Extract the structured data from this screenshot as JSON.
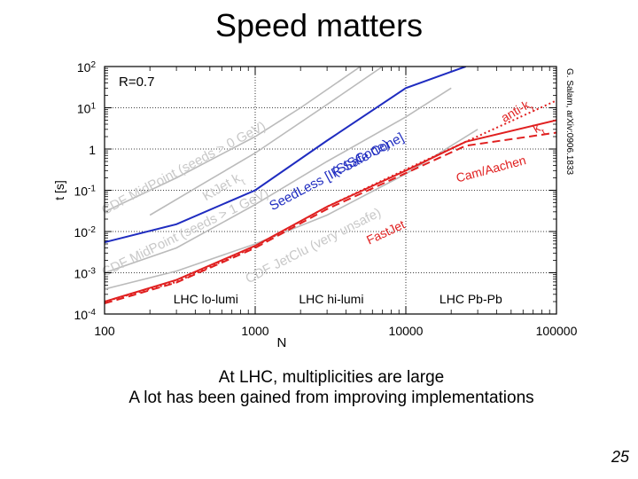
{
  "slide": {
    "title": "Speed matters",
    "caption_line1": "At LHC, multiplicities are large",
    "caption_line2": "A lot has been gained from improving implementations",
    "page_number": "25"
  },
  "chart_data": {
    "type": "line",
    "xscale": "log",
    "yscale": "log",
    "xlim": [
      100,
      100000
    ],
    "ylim": [
      0.0001,
      100
    ],
    "xlabel": "N",
    "ylabel": "t [s]",
    "xticks": [
      "100",
      "1000",
      "10000",
      "100000"
    ],
    "yticks": [
      {
        "base": "10",
        "exp": "2",
        "v": 100
      },
      {
        "base": "10",
        "exp": "1",
        "v": 10
      },
      {
        "base": "1",
        "exp": "",
        "v": 1
      },
      {
        "base": "10",
        "exp": "-1",
        "v": 0.1
      },
      {
        "base": "10",
        "exp": "-2",
        "v": 0.01
      },
      {
        "base": "10",
        "exp": "-3",
        "v": 0.001
      },
      {
        "base": "10",
        "exp": "-4",
        "v": 0.0001
      }
    ],
    "hlines": [
      10,
      1,
      0.1,
      0.01,
      0.001
    ],
    "vlines": [
      1000,
      10000,
      100000
    ],
    "param_label": "R=0.7",
    "citation": "G. Salam, arXiv:0906.1833",
    "region_labels": [
      {
        "text": "LHC lo-lumi",
        "x": 470,
        "y": 0.00018
      },
      {
        "text": "LHC hi-lumi",
        "x": 3200,
        "y": 0.00018
      },
      {
        "text": "LHC Pb-Pb",
        "x": 27000,
        "y": 0.00018
      }
    ],
    "series": [
      {
        "name": "CDF MidPoint (seeds > 0 GeV)",
        "color": "#bbbbbb",
        "style": "solid",
        "points": [
          [
            100,
            0.03
          ],
          [
            300,
            0.2
          ],
          [
            1000,
            2
          ],
          [
            2000,
            10
          ],
          [
            5000,
            100
          ]
        ]
      },
      {
        "name": "KtJet kt",
        "color": "#bbbbbb",
        "style": "solid",
        "points": [
          [
            200,
            0.025
          ],
          [
            500,
            0.18
          ],
          [
            1000,
            0.8
          ],
          [
            3000,
            12
          ],
          [
            7000,
            100
          ]
        ]
      },
      {
        "name": "CDF MidPoint (seeds > 1 GeV)",
        "color": "#bbbbbb",
        "style": "solid",
        "points": [
          [
            100,
            0.001
          ],
          [
            300,
            0.004
          ],
          [
            1000,
            0.045
          ],
          [
            3000,
            0.5
          ],
          [
            10000,
            6
          ],
          [
            20000,
            30
          ]
        ]
      },
      {
        "name": "CDF JetClu (very unsafe)",
        "color": "#bbbbbb",
        "style": "solid",
        "points": [
          [
            100,
            0.0004
          ],
          [
            300,
            0.0011
          ],
          [
            1000,
            0.005
          ],
          [
            3000,
            0.025
          ],
          [
            10000,
            0.25
          ],
          [
            30000,
            3
          ]
        ]
      },
      {
        "name": "SeedLess IR Safe Cone (SISCone)",
        "color": "#1f2cc0",
        "style": "solid",
        "points": [
          [
            100,
            0.0055
          ],
          [
            300,
            0.015
          ],
          [
            1000,
            0.1
          ],
          [
            3000,
            1.6
          ],
          [
            10000,
            30
          ],
          [
            25000,
            100
          ]
        ]
      },
      {
        "name": "FastJet kt",
        "color": "#e02020",
        "style": "solid",
        "points": [
          [
            100,
            0.0002
          ],
          [
            300,
            0.00067
          ],
          [
            1000,
            0.0045
          ],
          [
            3000,
            0.04
          ],
          [
            10000,
            0.3
          ],
          [
            25000,
            1.5
          ],
          [
            100000,
            5
          ]
        ]
      },
      {
        "name": "FastJet anti-kt",
        "color": "#e02020",
        "style": "dotted",
        "points": [
          [
            100,
            0.0002
          ],
          [
            300,
            0.0006
          ],
          [
            1000,
            0.0043
          ],
          [
            3000,
            0.04
          ],
          [
            10000,
            0.32
          ],
          [
            25000,
            1.5
          ],
          [
            100000,
            15
          ]
        ]
      },
      {
        "name": "FastJet Cam/Aachen",
        "color": "#e02020",
        "style": "dashed",
        "points": [
          [
            100,
            0.00018
          ],
          [
            300,
            0.00058
          ],
          [
            1000,
            0.004
          ],
          [
            3000,
            0.035
          ],
          [
            10000,
            0.26
          ],
          [
            25000,
            1.2
          ],
          [
            100000,
            2.5
          ]
        ]
      }
    ],
    "curve_labels": [
      {
        "text": "CDF MidPoint (seeds > 0 GeV)",
        "x": 100,
        "y": 0.025,
        "angle": -28,
        "color": "#c8c8c8",
        "size": 15
      },
      {
        "text": "KtJet k",
        "sub": "t",
        "x": 470,
        "y": 0.055,
        "angle": -30,
        "color": "#c8c8c8",
        "size": 15
      },
      {
        "text": "SeedLess [IR Safe Cone]",
        "x": 1300,
        "y": 0.032,
        "angle": -28,
        "color": "#1f2cc0",
        "size": 15
      },
      {
        "text": "(SISCone)",
        "x": 3400,
        "y": 0.22,
        "angle": -28,
        "color": "#1f2cc0",
        "size": 15
      },
      {
        "text": "CDF MidPoint (seeds > 1 GeV)",
        "x": 100,
        "y": 0.0008,
        "angle": -26,
        "color": "#c8c8c8",
        "size": 15
      },
      {
        "text": "CDF JetClu (very unsafe)",
        "x": 900,
        "y": 0.00055,
        "angle": -27,
        "color": "#c8c8c8",
        "size": 15
      },
      {
        "text": "FastJet",
        "x": 5700,
        "y": 0.0048,
        "angle": -25,
        "color": "#e02020",
        "size": 14
      },
      {
        "text": "Cam/Aachen",
        "x": 22000,
        "y": 0.155,
        "angle": -15,
        "color": "#e02020",
        "size": 14
      },
      {
        "text": "anti-k",
        "sub": "t",
        "x": 45000,
        "y": 4.4,
        "angle": -30,
        "color": "#e02020",
        "size": 14
      },
      {
        "text": "k",
        "sub": "t",
        "x": 73000,
        "y": 2.4,
        "angle": -30,
        "color": "#e02020",
        "size": 14
      }
    ]
  }
}
